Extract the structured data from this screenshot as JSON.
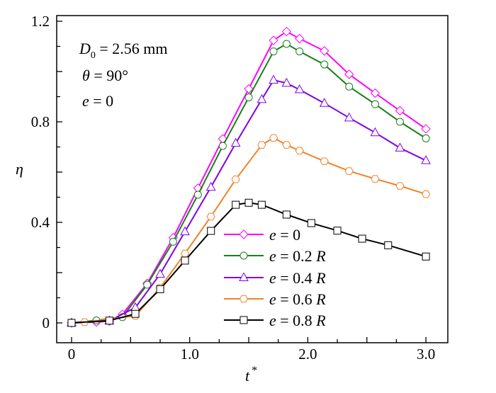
{
  "chart_data": {
    "type": "line",
    "title": "",
    "xlabel": "t",
    "xlabel_sup": "*",
    "ylabel": "η",
    "xlim": [
      -0.12,
      3.19
    ],
    "ylim": [
      -0.08,
      1.22
    ],
    "xticks": [
      0,
      1.0,
      2.0,
      3.0
    ],
    "xtick_labels": [
      "0",
      "1.0",
      "2.0",
      "3.0"
    ],
    "yticks": [
      0,
      0.4,
      0.8,
      1.2
    ],
    "ytick_labels": [
      "0",
      "0.4",
      "0.8",
      "1.2"
    ],
    "grid": false,
    "legend_placement": "bottom-center",
    "annotations": {
      "d0_symbol": "D",
      "d0_sub": "0",
      "d0_text": " = 2.56 mm",
      "theta_symbol": "θ",
      "theta_text": " = 90°",
      "e_symbol": "e",
      "e_text": " = 0"
    },
    "series": [
      {
        "name": "e = 0",
        "name_var": "e",
        "name_val": " = 0",
        "name_unit": "",
        "color": "#ff00ff",
        "marker": "diamond",
        "x": [
          0,
          0.21,
          0.32,
          0.43,
          0.64,
          0.86,
          1.07,
          1.28,
          1.5,
          1.71,
          1.82,
          1.93,
          2.14,
          2.35,
          2.57,
          2.78,
          3.0
        ],
        "y": [
          0,
          0.003,
          0.007,
          0.034,
          0.157,
          0.339,
          0.536,
          0.732,
          0.931,
          1.124,
          1.159,
          1.131,
          1.082,
          0.989,
          0.914,
          0.844,
          0.772
        ]
      },
      {
        "name": "e = 0.2 R",
        "name_var": "e",
        "name_val": " = 0.2 ",
        "name_unit": "R",
        "color": "#1a7f1a",
        "marker": "circle",
        "x": [
          0,
          0.21,
          0.43,
          0.64,
          0.86,
          1.07,
          1.28,
          1.5,
          1.71,
          1.82,
          1.93,
          2.14,
          2.35,
          2.57,
          2.78,
          3.0
        ],
        "y": [
          0,
          0.01,
          0.023,
          0.152,
          0.323,
          0.51,
          0.704,
          0.897,
          1.08,
          1.11,
          1.08,
          1.028,
          0.94,
          0.87,
          0.8,
          0.734
        ]
      },
      {
        "name": "e = 0.4 R",
        "name_var": "e",
        "name_val": " = 0.4 ",
        "name_unit": "R",
        "color": "#7f00e6",
        "marker": "triangle",
        "x": [
          0,
          0.32,
          0.54,
          0.75,
          0.96,
          1.18,
          1.39,
          1.61,
          1.71,
          1.82,
          1.93,
          2.14,
          2.35,
          2.57,
          2.78,
          3.0
        ],
        "y": [
          0,
          0.008,
          0.061,
          0.194,
          0.363,
          0.54,
          0.715,
          0.889,
          0.966,
          0.954,
          0.928,
          0.874,
          0.816,
          0.757,
          0.696,
          0.646
        ]
      },
      {
        "name": "e = 0.6 R",
        "name_var": "e",
        "name_val": " = 0.6 ",
        "name_unit": "R",
        "color": "#f08228",
        "marker": "hexagon",
        "x": [
          0,
          0.11,
          0.54,
          0.75,
          0.96,
          1.18,
          1.39,
          1.61,
          1.71,
          1.82,
          1.93,
          2.14,
          2.35,
          2.57,
          2.78,
          3.0
        ],
        "y": [
          0,
          0.003,
          0.028,
          0.14,
          0.276,
          0.423,
          0.571,
          0.708,
          0.736,
          0.708,
          0.685,
          0.643,
          0.604,
          0.573,
          0.545,
          0.512
        ]
      },
      {
        "name": "e = 0.8 R",
        "name_var": "e",
        "name_val": " = 0.8 ",
        "name_unit": "R",
        "color": "#000000",
        "marker": "square",
        "x": [
          0,
          0.32,
          0.54,
          0.75,
          0.96,
          1.18,
          1.39,
          1.5,
          1.61,
          1.82,
          2.03,
          2.25,
          2.46,
          2.68,
          3.0
        ],
        "y": [
          0,
          0.009,
          0.036,
          0.134,
          0.248,
          0.366,
          0.47,
          0.478,
          0.47,
          0.431,
          0.397,
          0.367,
          0.335,
          0.309,
          0.264
        ]
      }
    ]
  }
}
